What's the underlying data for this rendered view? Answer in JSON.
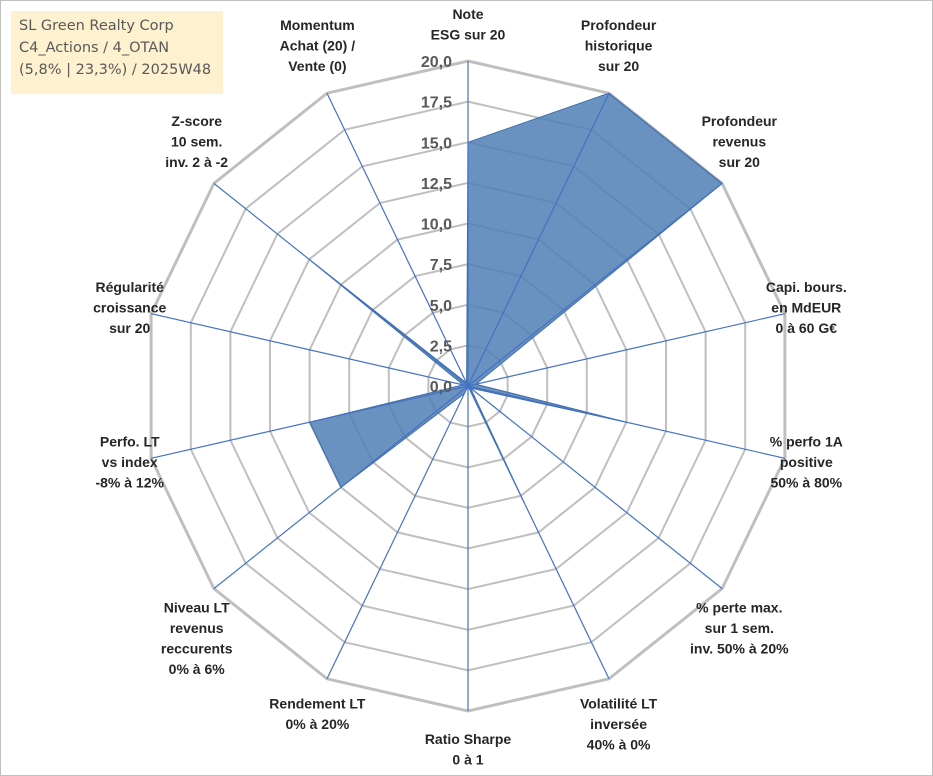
{
  "title_lines": [
    "SL Green Realty Corp",
    "C4_Actions / 4_OTAN",
    "(5,8% | 23,3%) / 2025W48"
  ],
  "colors": {
    "title_bg": "#fdf1cf",
    "grid": "#bfbfbf",
    "axis": "#4472c4",
    "fill": "#4f7fb6",
    "stroke": "#3f6fa8"
  },
  "chart_data": {
    "type": "radar",
    "title": "SL Green Realty Corp",
    "rmin": 0,
    "rmax": 20,
    "rstep": 2.5,
    "tick_labels": [
      "0,0",
      "2,5",
      "5,0",
      "7,5",
      "10,0",
      "12,5",
      "15,0",
      "17,5",
      "20,0"
    ],
    "grid": true,
    "axes": [
      {
        "lines": [
          "Note",
          "ESG sur 20"
        ]
      },
      {
        "lines": [
          "Profondeur",
          "historique",
          "sur 20"
        ]
      },
      {
        "lines": [
          "Profondeur",
          "revenus",
          "sur 20"
        ]
      },
      {
        "lines": [
          "Capi. bours.",
          "en MdEUR",
          "0 à 60 G€"
        ]
      },
      {
        "lines": [
          "% perfo 1A",
          "positive",
          "50% à 80%"
        ]
      },
      {
        "lines": [
          "% perte max.",
          "sur 1 sem.",
          "inv. 50% à 20%"
        ]
      },
      {
        "lines": [
          "Volatilité LT",
          "inversée",
          "40% à 0%"
        ]
      },
      {
        "lines": [
          "Ratio Sharpe",
          "0 à 1"
        ]
      },
      {
        "lines": [
          "Rendement LT",
          "0% à 20%"
        ]
      },
      {
        "lines": [
          "Niveau LT",
          "revenus",
          "reccurents",
          "0% à 6%"
        ]
      },
      {
        "lines": [
          "Perfo. LT",
          "vs index",
          "-8% à 12%"
        ]
      },
      {
        "lines": [
          "Régularité",
          "croissance",
          "sur 20"
        ]
      },
      {
        "lines": [
          "Z-score",
          "10 sem.",
          "inv. 2 à -2"
        ]
      },
      {
        "lines": [
          "Momentum",
          "Achat (20) /",
          "Vente (0)"
        ]
      }
    ],
    "series": [
      {
        "values": [
          15.0,
          20.0,
          20.0,
          0.5,
          10.0,
          0.2,
          8.0,
          0.0,
          0.5,
          10.0,
          10.0,
          0.3,
          12.5,
          0.2
        ]
      }
    ]
  }
}
